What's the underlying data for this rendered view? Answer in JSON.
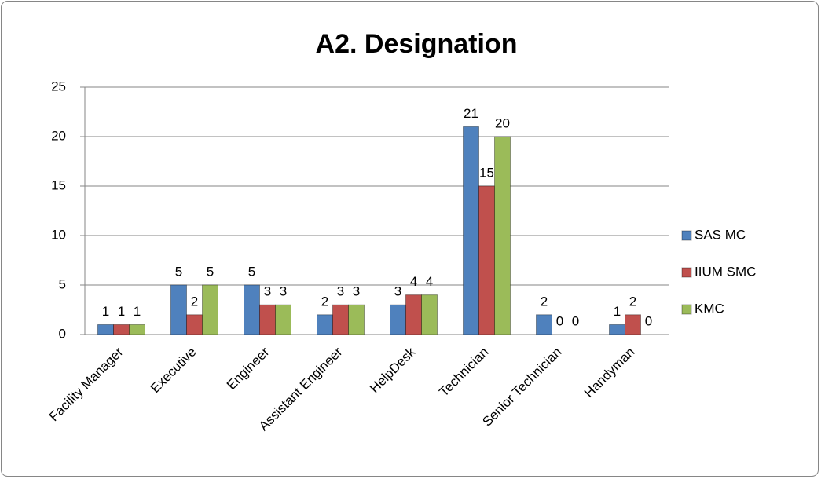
{
  "chart_data": {
    "type": "bar",
    "title": "A2. Designation",
    "categories": [
      "Facility Manager",
      "Executive",
      "Engineer",
      "Assistant Engineer",
      "HelpDesk",
      "Technician",
      "Senior Technician",
      "Handyman"
    ],
    "series": [
      {
        "name": "SAS MC",
        "color": "#4f81bd",
        "values": [
          1,
          5,
          5,
          2,
          3,
          21,
          2,
          1
        ]
      },
      {
        "name": "IIUM SMC",
        "color": "#c0504d",
        "values": [
          1,
          2,
          3,
          3,
          4,
          15,
          0,
          2
        ]
      },
      {
        "name": "KMC",
        "color": "#9bbb59",
        "values": [
          1,
          5,
          3,
          3,
          4,
          20,
          0,
          0
        ]
      }
    ],
    "ylim": [
      0,
      25
    ],
    "yticks": [
      0,
      5,
      10,
      15,
      20,
      25
    ],
    "grid": true,
    "legend": "right"
  }
}
